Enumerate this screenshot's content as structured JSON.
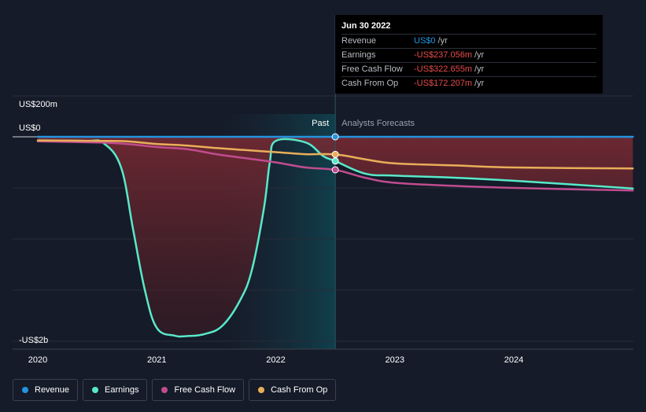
{
  "chart_data": {
    "type": "line",
    "title": "",
    "xlabel": "",
    "ylabel": "",
    "x_ticks": [
      "2020",
      "2021",
      "2022",
      "2023",
      "2024"
    ],
    "y_labels": [
      "US$200m",
      "US$0",
      "-US$2b"
    ],
    "ylim": [
      -2000,
      200
    ],
    "xlim": [
      2020.0,
      2025.0
    ],
    "past_label": "Past",
    "forecast_label": "Analysts Forecasts",
    "divider_x": 2022.5,
    "series": [
      {
        "name": "Revenue",
        "color": "#2394df",
        "x": [
          2020.0,
          2021.0,
          2022.0,
          2022.5,
          2023.0,
          2024.0,
          2025.0
        ],
        "y": [
          0,
          0,
          0,
          0,
          0,
          0,
          0
        ]
      },
      {
        "name": "Earnings",
        "color": "#58e9c9",
        "x": [
          2020.0,
          2020.4,
          2020.55,
          2020.7,
          2020.8,
          2020.9,
          2021.0,
          2021.15,
          2021.25,
          2021.4,
          2021.55,
          2021.7,
          2021.8,
          2021.9,
          2021.95,
          2022.0,
          2022.25,
          2022.4,
          2022.5,
          2022.75,
          2023.0,
          2023.5,
          2024.0,
          2025.0
        ],
        "y": [
          -35,
          -40,
          -60,
          -300,
          -900,
          -1500,
          -1870,
          -1945,
          -1950,
          -1930,
          -1850,
          -1600,
          -1300,
          -700,
          -250,
          -40,
          -55,
          -190,
          -237,
          -360,
          -380,
          -400,
          -430,
          -505
        ]
      },
      {
        "name": "Free Cash Flow",
        "color": "#c04c8f",
        "x": [
          2020.0,
          2020.5,
          2020.75,
          2021.0,
          2021.25,
          2021.5,
          2021.75,
          2022.0,
          2022.25,
          2022.5,
          2022.75,
          2023.0,
          2023.5,
          2024.0,
          2025.0
        ],
        "y": [
          -45,
          -55,
          -70,
          -100,
          -120,
          -170,
          -210,
          -250,
          -300,
          -323,
          -400,
          -450,
          -480,
          -500,
          -525
        ]
      },
      {
        "name": "Cash From Op",
        "color": "#e9ae59",
        "x": [
          2020.0,
          2020.5,
          2020.75,
          2021.0,
          2021.25,
          2021.5,
          2021.75,
          2022.0,
          2022.25,
          2022.5,
          2022.75,
          2023.0,
          2023.5,
          2024.0,
          2025.0
        ],
        "y": [
          -35,
          -40,
          -45,
          -70,
          -85,
          -110,
          -130,
          -150,
          -170,
          -172,
          -220,
          -260,
          -280,
          -300,
          -310
        ]
      }
    ],
    "tooltip": {
      "date": "Jun 30 2022",
      "rows": [
        {
          "name": "Revenue",
          "value": "US$0",
          "unit": "/yr",
          "color": "#2394df"
        },
        {
          "name": "Earnings",
          "value": "-US$237.056m",
          "unit": "/yr",
          "color": "#e84b4b"
        },
        {
          "name": "Free Cash Flow",
          "value": "-US$322.655m",
          "unit": "/yr",
          "color": "#e84b4b"
        },
        {
          "name": "Cash From Op",
          "value": "-US$172.207m",
          "unit": "/yr",
          "color": "#e84b4b"
        }
      ]
    }
  },
  "legend": {
    "items": [
      {
        "label": "Revenue",
        "color": "#2394df"
      },
      {
        "label": "Earnings",
        "color": "#58e9c9"
      },
      {
        "label": "Free Cash Flow",
        "color": "#c04c8f"
      },
      {
        "label": "Cash From Op",
        "color": "#e9ae59"
      }
    ]
  }
}
